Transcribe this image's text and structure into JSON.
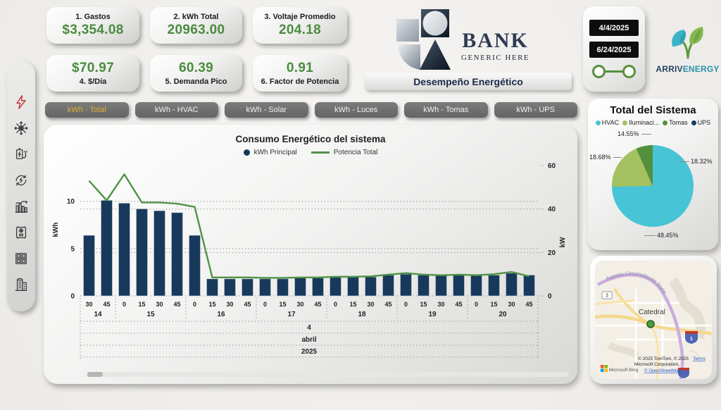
{
  "kpis": {
    "row1": [
      {
        "label": "1. Gastos",
        "value": "$3,354.08"
      },
      {
        "label": "2. kWh Total",
        "value": "20963.00"
      },
      {
        "label": "3. Voltaje Promedio",
        "value": "204.18"
      }
    ],
    "row2": [
      {
        "value": "$70.97",
        "label": "4. $/Día"
      },
      {
        "value": "60.39",
        "label": "5. Demanda Pico"
      },
      {
        "value": "0.91",
        "label": "6. Factor de Potencia"
      }
    ]
  },
  "brand": {
    "bank_name": "BANK",
    "bank_tagline": "GENERIC HERE",
    "page_title": "Desempeño Energético",
    "energy_brand_left": "ARRIV",
    "energy_brand_right": "ENERGY"
  },
  "date_slicer": {
    "start": "4/4/2025",
    "end": "6/24/2025"
  },
  "sidebar": {
    "icons": [
      "energy-bolt",
      "snowflake-hvac",
      "battery-charging",
      "renewable-energy",
      "statistics-chart",
      "fuse-box",
      "electrical-panel",
      "building"
    ]
  },
  "tabs": {
    "items": [
      {
        "label": "kWh - Total",
        "active": true
      },
      {
        "label": "kWh - HVAC",
        "active": false
      },
      {
        "label": "kWh - Solar",
        "active": false
      },
      {
        "label": "kWh - Luces",
        "active": false
      },
      {
        "label": "kWh - Tomas",
        "active": false
      },
      {
        "label": "kWh - UPS",
        "active": false
      }
    ]
  },
  "chart_data": [
    {
      "type": "bar",
      "title": "Consumo Energético del sistema",
      "series": [
        {
          "name": "kWh Principal",
          "type": "bar",
          "axis": "left",
          "values": [
            6.4,
            10.1,
            9.8,
            9.2,
            9.0,
            8.8,
            6.4,
            1.8,
            1.8,
            1.8,
            1.8,
            1.8,
            1.9,
            1.9,
            2.0,
            2.0,
            2.0,
            2.2,
            2.3,
            2.2,
            2.2,
            2.2,
            2.2,
            2.2,
            2.4,
            2.2
          ]
        },
        {
          "name": "Potencia Total",
          "type": "line",
          "axis": "right",
          "values": [
            53,
            44,
            56,
            43,
            43,
            42.5,
            41,
            8.5,
            8.5,
            8.5,
            8.3,
            8.3,
            8.5,
            8.5,
            8.8,
            8.8,
            9.0,
            9.8,
            10.5,
            9.8,
            9.5,
            9.8,
            9.5,
            10.0,
            11.0,
            9.0
          ]
        }
      ],
      "x_minor_labels": [
        "30",
        "45",
        "0",
        "15",
        "30",
        "45",
        "0",
        "15",
        "30",
        "45",
        "0",
        "15",
        "30",
        "45",
        "0",
        "15",
        "30",
        "45",
        "0",
        "15",
        "30",
        "45",
        "0",
        "15",
        "30",
        "45"
      ],
      "x_groups": [
        {
          "label": "14",
          "count": 2
        },
        {
          "label": "15",
          "count": 4
        },
        {
          "label": "16",
          "count": 4
        },
        {
          "label": "17",
          "count": 4
        },
        {
          "label": "18",
          "count": 4
        },
        {
          "label": "19",
          "count": 4
        },
        {
          "label": "20",
          "count": 4
        }
      ],
      "x_period_rows": [
        "4",
        "abril",
        "2025"
      ],
      "left_axis": {
        "title": "kWh",
        "ticks": [
          0,
          5,
          10
        ],
        "max": 14
      },
      "right_axis": {
        "title": "kW",
        "ticks": [
          0,
          20,
          40,
          60
        ],
        "max": 61
      },
      "colors": {
        "bar": "#17395c",
        "line": "#4f9345"
      },
      "legend_position": "top"
    },
    {
      "type": "pie",
      "title": "Total del Sistema",
      "start_angle_deg": 94.6,
      "slices": [
        {
          "label": "HVAC",
          "value": 48.45,
          "pct": "48.45%",
          "color": "#47c4d6"
        },
        {
          "label": "Iluminaci...",
          "value": 18.68,
          "pct": "18.68%",
          "color": "#a3c161"
        },
        {
          "label": "Tomas",
          "value": 14.55,
          "pct": "14.55%",
          "color": "#53903c"
        },
        {
          "label": "UPS",
          "value": 18.32,
          "pct": "18.32%",
          "color": "#16395e"
        }
      ],
      "legend_position": "top"
    }
  ],
  "map": {
    "city_label": "Catedral",
    "road_label": "Avenida Circunvalación Norte",
    "shield_a": "3",
    "shield_b": "1",
    "copyright_line1": "© 2025 TomTom, © 2025",
    "copyright_line2": "Microsoft Corporation,",
    "terms_label": "Terms",
    "osm_label": "© OpenStreetMap",
    "bing_label": "Microsoft Bing"
  }
}
